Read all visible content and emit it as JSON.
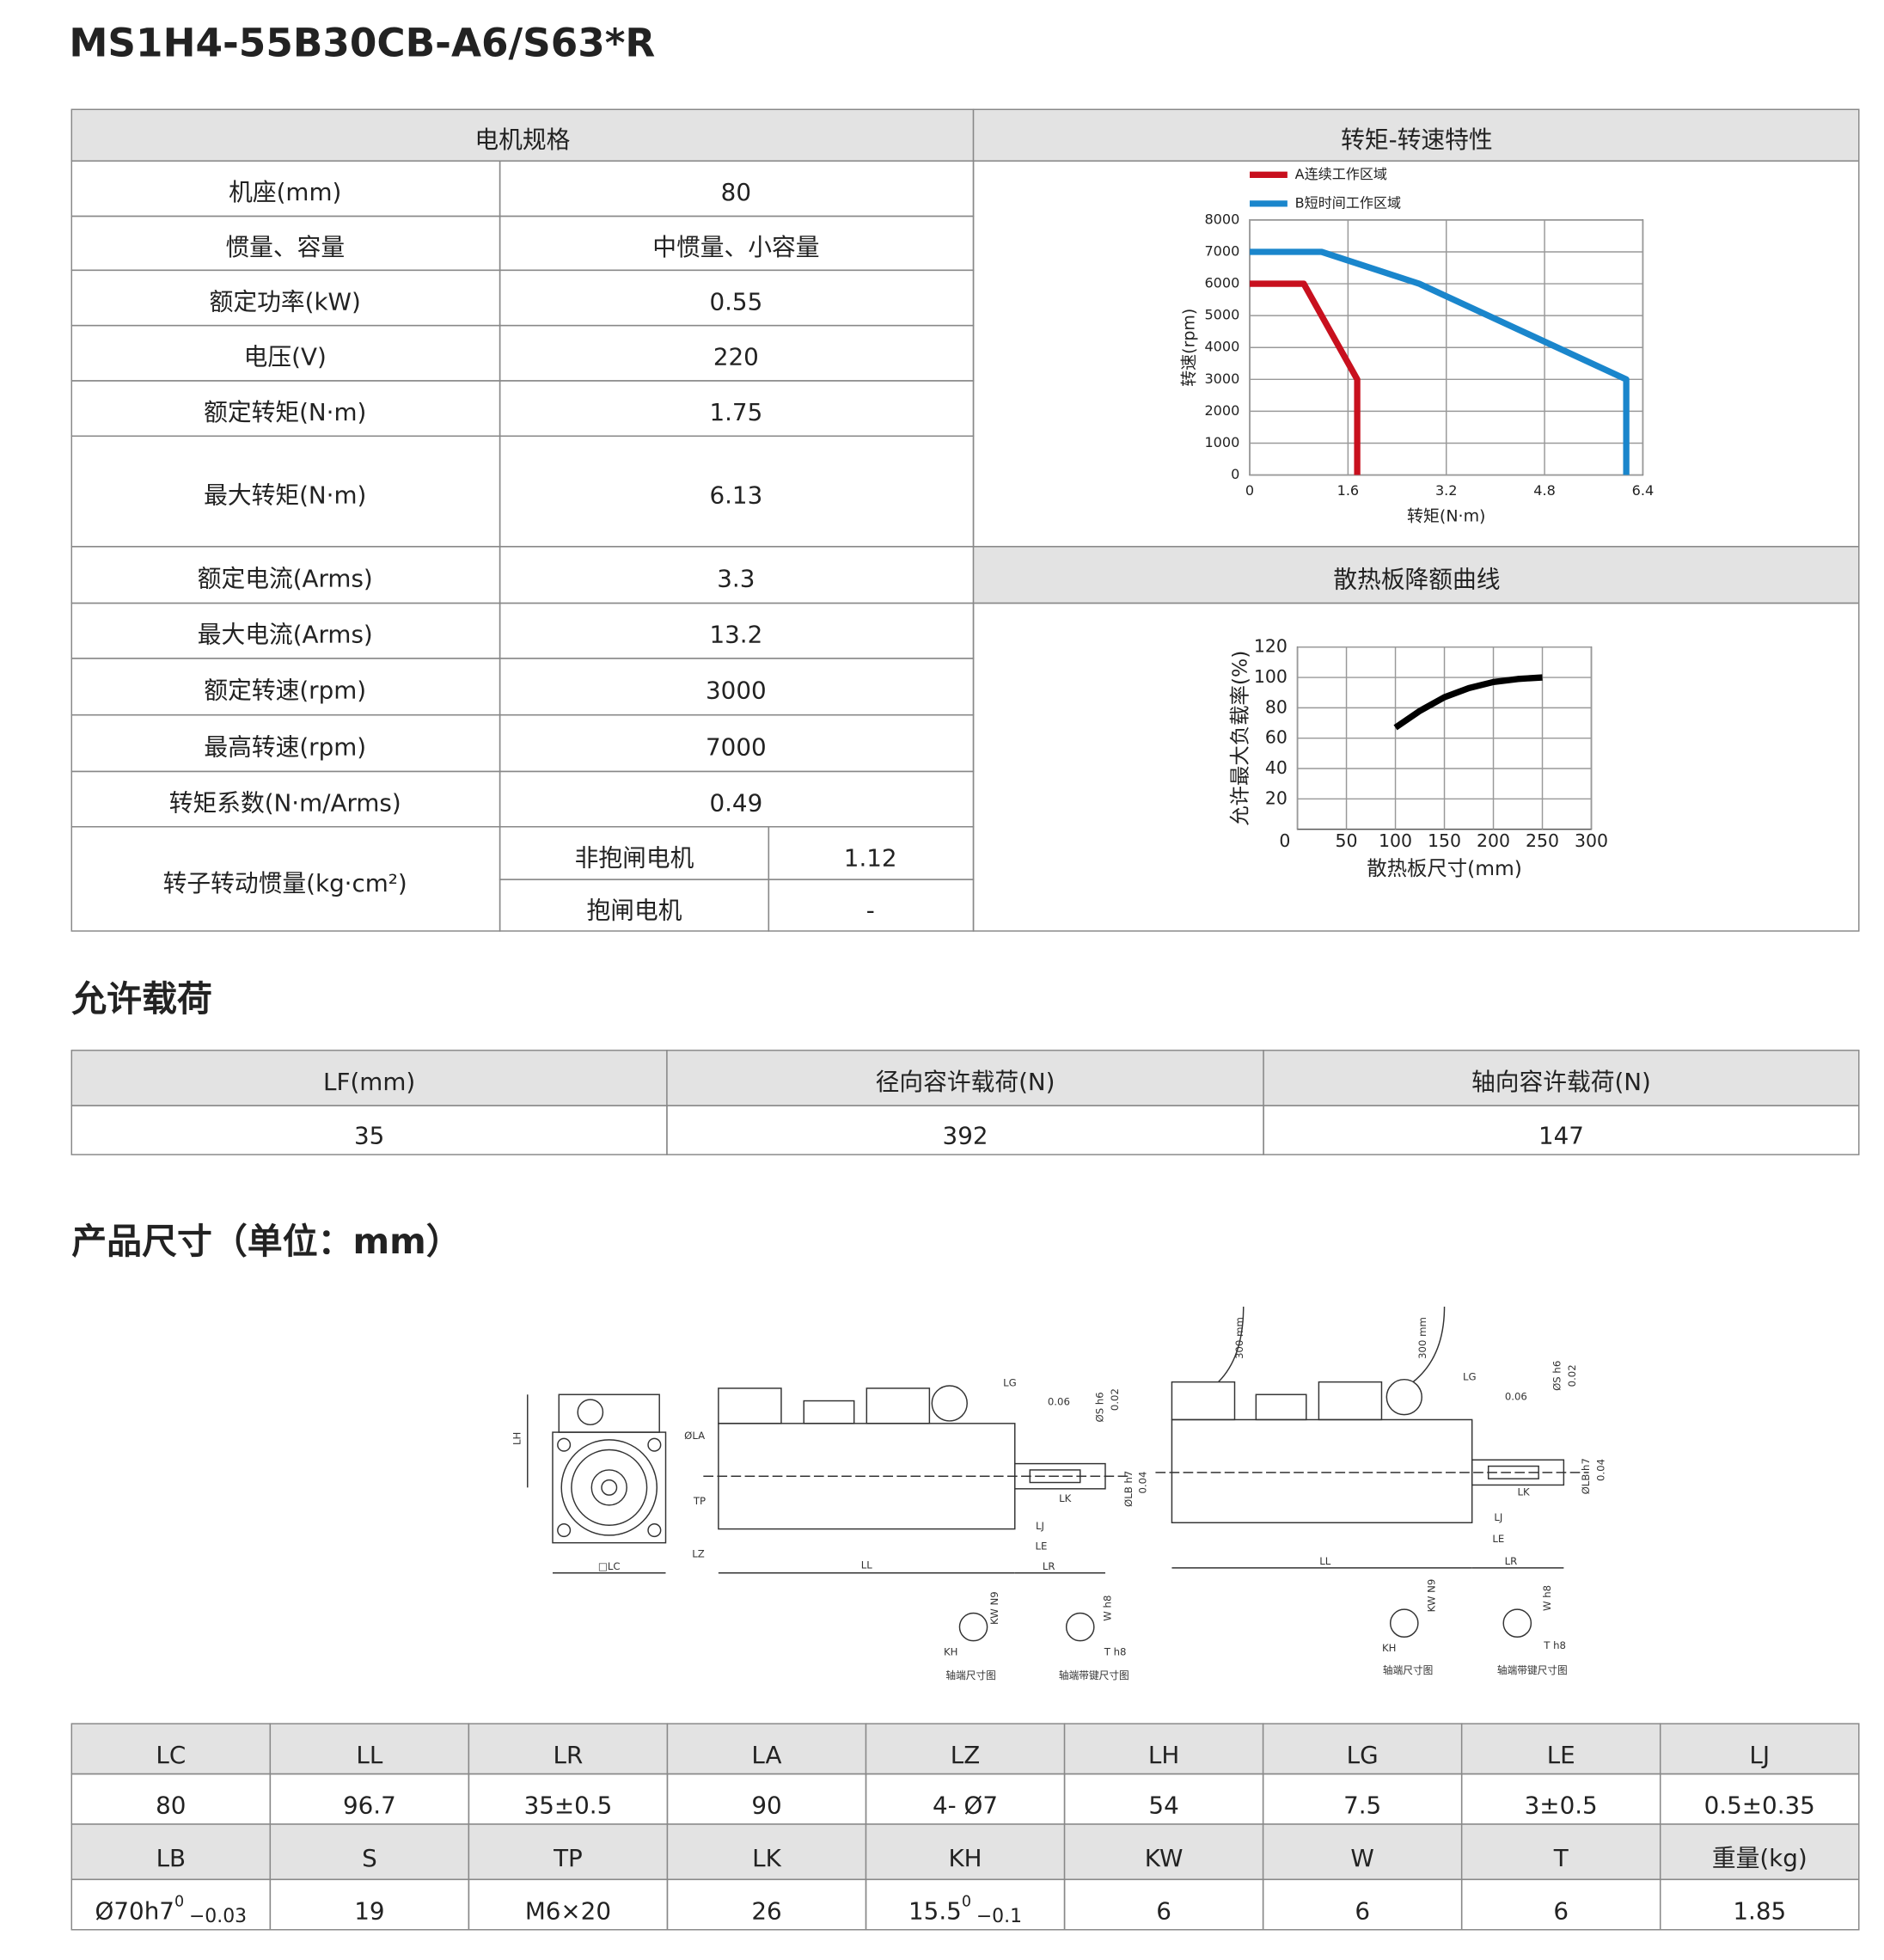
{
  "title": "MS1H4-55B30CB-A6/S63*R",
  "spec_table": {
    "header": "电机规格",
    "rows": [
      [
        "机座(mm)",
        "80"
      ],
      [
        "惯量、容量",
        "中惯量、小容量"
      ],
      [
        "额定功率(kW)",
        "0.55"
      ],
      [
        "电压(V)",
        "220"
      ],
      [
        "额定转矩(N·m)",
        "1.75"
      ],
      [
        "最大转矩(N·m)",
        "6.13"
      ],
      [
        "额定电流(Arms)",
        "3.3"
      ],
      [
        "最大电流(Arms)",
        "13.2"
      ],
      [
        "额定转速(rpm)",
        "3000"
      ],
      [
        "最高转速(rpm)",
        "7000"
      ],
      [
        "转矩系数(N·m/Arms)",
        "0.49"
      ]
    ],
    "inertia": {
      "label": "转子转动惯量(kg·cm²)",
      "rows": [
        [
          "非抱闸电机",
          "1.12"
        ],
        [
          "抱闸电机",
          "-"
        ]
      ]
    }
  },
  "chart_data": [
    {
      "type": "line",
      "title": "转矩-转速特性",
      "x_label": "转矩(N·m)",
      "y_label": "转速(rpm)",
      "xlim": [
        0,
        6.4
      ],
      "xticks": [
        0,
        1.6,
        3.2,
        4.8,
        6.4
      ],
      "ylim": [
        0,
        8000
      ],
      "yticks": [
        0,
        1000,
        2000,
        3000,
        4000,
        5000,
        6000,
        7000,
        8000
      ],
      "grid": true,
      "series": [
        {
          "name": "A连续工作区域",
          "color": "#c8101e",
          "x": [
            0,
            0.88,
            1.75,
            1.75
          ],
          "values": [
            6000,
            6000,
            3000,
            0
          ]
        },
        {
          "name": "B短时间工作区域",
          "color": "#1a86cc",
          "x": [
            0,
            1.17,
            2.76,
            6.13,
            6.13
          ],
          "values": [
            7000,
            7000,
            6000,
            3000,
            0
          ]
        }
      ]
    },
    {
      "type": "line",
      "title": "散热板降额曲线",
      "x_label": "散热板尺寸(mm)",
      "y_label": "允许最大负载率(%)",
      "xlim": [
        0,
        300
      ],
      "xticks": [
        0,
        50,
        100,
        150,
        200,
        250,
        300
      ],
      "ylim": [
        0,
        120
      ],
      "yticks": [
        20,
        40,
        60,
        80,
        100,
        120
      ],
      "grid": true,
      "series": [
        {
          "color": "#000000",
          "x": [
            100,
            125,
            150,
            175,
            200,
            225,
            250
          ],
          "values": [
            67,
            78,
            87,
            93,
            97,
            99,
            100
          ]
        }
      ]
    }
  ],
  "load_section": {
    "title": "允许载荷",
    "headers": [
      "LF(mm)",
      "径向容许载荷(N)",
      "轴向容许载荷(N)"
    ],
    "values": [
      "35",
      "392",
      "147"
    ]
  },
  "dimension_section": {
    "title": "产品尺寸（单位：mm）",
    "labels": [
      "LH",
      "ØLA",
      "TP",
      "LZ",
      "□LC",
      "LL",
      "LR",
      "LG",
      "LJ",
      "LE",
      "LK",
      "ØS h6",
      "ØLB h7",
      "0.06",
      "0.02",
      "0.04",
      "300 mm",
      "300 mm",
      "LL",
      "LR",
      "LG",
      "LJ",
      "LE",
      "LK",
      "ØS h6",
      "ØLB h7",
      "0.06",
      "0.02",
      "0.04",
      "KH",
      "KW N9",
      "W h8",
      "T h8",
      "KH",
      "KW N9",
      "W h8",
      "T h8",
      "轴端尺寸图",
      "轴端带键尺寸图",
      "轴端尺寸图",
      "轴端带键尺寸图"
    ],
    "table": [
      [
        "LC",
        "LL",
        "LR",
        "LA",
        "LZ",
        "LH",
        "LG",
        "LE",
        "LJ"
      ],
      [
        "80",
        "96.7",
        "35±0.5",
        "90",
        "4- Ø7",
        "54",
        "7.5",
        "3±0.5",
        "0.5±0.35"
      ],
      [
        "LB",
        "S",
        "TP",
        "LK",
        "KH",
        "KW",
        "W",
        "T",
        "重量(kg)"
      ],
      [
        {
          "text": "Ø70h7",
          "upper": "0",
          "lower": "−0.03"
        },
        "19",
        "M6×20",
        "26",
        {
          "text": "15.5",
          "upper": "0",
          "lower": "−0.1"
        },
        "6",
        "6",
        "6",
        "1.85"
      ]
    ]
  }
}
